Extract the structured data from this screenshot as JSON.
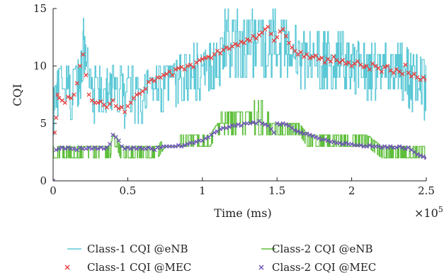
{
  "chart_data": {
    "type": "line",
    "title": "",
    "xlabel": "Time (ms)",
    "ylabel": "CQI",
    "x_multiplier_label": "×10",
    "x_multiplier_exponent": "5",
    "xlim": [
      0,
      2.5
    ],
    "ylim": [
      0,
      15
    ],
    "x_ticks": [
      0,
      0.5,
      1,
      1.5,
      2,
      2.5
    ],
    "x_tick_labels": [
      "0",
      "0.5",
      "1",
      "1.5",
      "2",
      "2.5"
    ],
    "y_ticks": [
      0,
      5,
      10,
      15
    ],
    "y_tick_labels": [
      "0",
      "5",
      "10",
      "15"
    ],
    "grid": false,
    "legend_position": "below",
    "series": [
      {
        "name": "Class-1 CQI @eNB",
        "kind": "line",
        "color": "#5bc8d6",
        "envelope_x": [
          0,
          0.05,
          0.1,
          0.15,
          0.18,
          0.2,
          0.22,
          0.25,
          0.3,
          0.35,
          0.4,
          0.45,
          0.5,
          0.55,
          0.6,
          0.65,
          0.7,
          0.75,
          0.8,
          0.85,
          0.9,
          0.95,
          1.0,
          1.05,
          1.1,
          1.15,
          1.2,
          1.25,
          1.3,
          1.35,
          1.4,
          1.45,
          1.5,
          1.55,
          1.6,
          1.65,
          1.7,
          1.75,
          1.8,
          1.85,
          1.9,
          1.95,
          2.0,
          2.05,
          2.1,
          2.15,
          2.2,
          2.25,
          2.3,
          2.35,
          2.4,
          2.45,
          2.5
        ],
        "envelope_low": [
          4,
          5,
          5,
          6,
          7,
          8,
          9,
          5,
          5,
          5,
          4,
          4,
          5,
          5,
          5,
          6,
          6,
          6,
          6,
          7,
          7,
          7,
          7,
          8,
          8,
          9,
          9,
          9,
          9,
          9,
          9,
          9,
          9,
          9,
          9,
          8,
          8,
          8,
          8,
          8,
          8,
          8,
          8,
          7,
          7,
          7,
          7,
          7,
          7,
          7,
          6,
          6,
          5
        ],
        "envelope_high": [
          10,
          10,
          10,
          11,
          13,
          14,
          12,
          10,
          10,
          10,
          10,
          10,
          10,
          10,
          10,
          10,
          10,
          11,
          11,
          11,
          11,
          12,
          12,
          12,
          13,
          15,
          15,
          15,
          15,
          15,
          15,
          15,
          15,
          14,
          14,
          13,
          13,
          13,
          13,
          13,
          13,
          13,
          13,
          12,
          12,
          12,
          12,
          12,
          12,
          12,
          11,
          11,
          11
        ]
      },
      {
        "name": "Class-1 CQI @MEC",
        "kind": "marker-x",
        "color": "#e83a3a",
        "x": [
          0,
          0.01,
          0.02,
          0.03,
          0.04,
          0.06,
          0.08,
          0.1,
          0.12,
          0.14,
          0.16,
          0.18,
          0.2,
          0.22,
          0.24,
          0.26,
          0.28,
          0.3,
          0.32,
          0.34,
          0.36,
          0.38,
          0.4,
          0.42,
          0.44,
          0.46,
          0.48,
          0.5,
          0.52,
          0.54,
          0.56,
          0.58,
          0.6,
          0.62,
          0.64,
          0.66,
          0.68,
          0.7,
          0.72,
          0.74,
          0.76,
          0.78,
          0.8,
          0.82,
          0.84,
          0.86,
          0.88,
          0.9,
          0.92,
          0.94,
          0.96,
          0.98,
          1.0,
          1.02,
          1.04,
          1.06,
          1.08,
          1.1,
          1.12,
          1.14,
          1.16,
          1.18,
          1.2,
          1.22,
          1.24,
          1.26,
          1.28,
          1.3,
          1.32,
          1.34,
          1.36,
          1.38,
          1.4,
          1.42,
          1.44,
          1.46,
          1.48,
          1.5,
          1.52,
          1.54,
          1.56,
          1.58,
          1.6,
          1.62,
          1.64,
          1.66,
          1.68,
          1.7,
          1.72,
          1.74,
          1.76,
          1.78,
          1.8,
          1.82,
          1.84,
          1.86,
          1.88,
          1.9,
          1.92,
          1.94,
          1.96,
          1.98,
          2.0,
          2.02,
          2.04,
          2.06,
          2.08,
          2.1,
          2.12,
          2.14,
          2.16,
          2.18,
          2.2,
          2.22,
          2.24,
          2.26,
          2.28,
          2.3,
          2.32,
          2.34,
          2.36,
          2.38,
          2.4,
          2.42,
          2.44,
          2.46,
          2.48,
          2.5
        ],
        "y": [
          0,
          4.2,
          5.5,
          7.5,
          7.2,
          7.0,
          6.8,
          7.3,
          7.2,
          7.5,
          8.5,
          10.0,
          11.0,
          9.2,
          7.5,
          7.0,
          6.8,
          6.8,
          6.9,
          6.6,
          6.4,
          6.7,
          7.0,
          6.5,
          6.3,
          6.4,
          6.0,
          6.5,
          6.8,
          7.2,
          7.5,
          7.6,
          7.8,
          8.0,
          8.6,
          8.8,
          8.7,
          9.0,
          9.0,
          9.2,
          9.3,
          9.5,
          9.2,
          9.7,
          9.8,
          9.9,
          9.7,
          10.0,
          10.1,
          9.9,
          10.3,
          10.5,
          10.6,
          10.7,
          10.8,
          10.7,
          11.0,
          11.3,
          11.1,
          11.4,
          11.6,
          11.5,
          11.7,
          11.9,
          11.8,
          12.1,
          12.0,
          12.3,
          12.2,
          12.6,
          12.4,
          12.7,
          12.9,
          13.2,
          13.4,
          12.8,
          12.2,
          12.5,
          13.0,
          13.2,
          12.6,
          12.0,
          11.6,
          11.3,
          11.0,
          11.2,
          10.8,
          11.0,
          10.7,
          10.8,
          10.9,
          10.6,
          10.7,
          10.3,
          10.6,
          10.4,
          10.8,
          10.5,
          10.3,
          10.5,
          10.2,
          10.3,
          10.0,
          10.2,
          10.4,
          10.1,
          9.9,
          10.0,
          9.7,
          10.2,
          10.0,
          9.8,
          9.5,
          9.9,
          10.0,
          9.6,
          9.4,
          9.7,
          9.5,
          9.3,
          10.1,
          9.4,
          9.1,
          9.3,
          9.0,
          8.8,
          9.0,
          8.8
        ]
      },
      {
        "name": "Class-2 CQI @eNB",
        "kind": "line",
        "color": "#5fbf3c",
        "envelope_x": [
          0,
          0.1,
          0.2,
          0.3,
          0.38,
          0.4,
          0.42,
          0.45,
          0.5,
          0.6,
          0.7,
          0.75,
          0.8,
          0.9,
          1.0,
          1.05,
          1.1,
          1.15,
          1.2,
          1.25,
          1.3,
          1.35,
          1.4,
          1.45,
          1.5,
          1.55,
          1.6,
          1.65,
          1.7,
          1.75,
          1.8,
          1.9,
          2.0,
          2.1,
          2.2,
          2.3,
          2.4,
          2.45,
          2.5
        ],
        "envelope_low": [
          2,
          2,
          2,
          2,
          2,
          3,
          3,
          2,
          2,
          2,
          2,
          3,
          3,
          3,
          3,
          3,
          4,
          4,
          4,
          4,
          4,
          4,
          4,
          4,
          4,
          4,
          4,
          4,
          3,
          3,
          3,
          3,
          3,
          3,
          2,
          2,
          2,
          2,
          2
        ],
        "envelope_high": [
          3,
          3,
          3,
          3,
          3,
          4,
          4,
          3,
          3,
          3,
          3,
          3,
          3,
          4,
          4,
          4,
          6,
          6,
          6,
          6,
          6,
          7,
          7,
          6,
          5,
          5,
          5,
          5,
          4,
          4,
          4,
          4,
          4,
          4,
          3,
          3,
          3,
          3,
          3
        ]
      },
      {
        "name": "Class-2 CQI @MEC",
        "kind": "marker-x",
        "color": "#6a4fb5",
        "x": [
          0,
          0.02,
          0.04,
          0.06,
          0.08,
          0.1,
          0.12,
          0.14,
          0.16,
          0.18,
          0.2,
          0.22,
          0.24,
          0.26,
          0.28,
          0.3,
          0.32,
          0.34,
          0.36,
          0.38,
          0.4,
          0.42,
          0.44,
          0.46,
          0.48,
          0.5,
          0.52,
          0.54,
          0.56,
          0.58,
          0.6,
          0.62,
          0.64,
          0.66,
          0.68,
          0.7,
          0.72,
          0.74,
          0.76,
          0.78,
          0.8,
          0.82,
          0.84,
          0.86,
          0.88,
          0.9,
          0.92,
          0.94,
          0.96,
          0.98,
          1.0,
          1.02,
          1.04,
          1.06,
          1.08,
          1.1,
          1.12,
          1.14,
          1.16,
          1.18,
          1.2,
          1.22,
          1.24,
          1.26,
          1.28,
          1.3,
          1.32,
          1.34,
          1.36,
          1.38,
          1.4,
          1.42,
          1.44,
          1.46,
          1.48,
          1.5,
          1.52,
          1.54,
          1.56,
          1.58,
          1.6,
          1.62,
          1.64,
          1.66,
          1.68,
          1.7,
          1.72,
          1.74,
          1.76,
          1.78,
          1.8,
          1.82,
          1.84,
          1.86,
          1.88,
          1.9,
          1.92,
          1.94,
          1.96,
          1.98,
          2.0,
          2.02,
          2.04,
          2.06,
          2.08,
          2.1,
          2.12,
          2.14,
          2.16,
          2.18,
          2.2,
          2.22,
          2.24,
          2.26,
          2.28,
          2.3,
          2.32,
          2.34,
          2.36,
          2.38,
          2.4,
          2.42,
          2.44,
          2.46,
          2.48,
          2.5
        ],
        "y": [
          0,
          2.7,
          2.8,
          2.9,
          2.8,
          2.9,
          2.8,
          2.8,
          2.7,
          2.9,
          2.8,
          2.8,
          2.9,
          2.8,
          2.9,
          2.8,
          2.9,
          2.8,
          2.9,
          3.2,
          4.0,
          3.8,
          3.5,
          3.0,
          2.8,
          2.9,
          2.8,
          2.9,
          2.8,
          2.9,
          2.8,
          2.8,
          2.9,
          2.8,
          2.7,
          2.9,
          2.9,
          3.0,
          3.0,
          3.0,
          3.0,
          3.0,
          3.1,
          3.0,
          3.1,
          3.2,
          3.3,
          3.3,
          3.4,
          3.5,
          3.5,
          3.7,
          3.8,
          4.0,
          4.2,
          4.3,
          4.5,
          4.6,
          4.6,
          4.7,
          4.8,
          4.8,
          4.9,
          4.8,
          5.0,
          5.0,
          5.0,
          5.1,
          5.0,
          5.2,
          5.0,
          4.9,
          4.8,
          4.5,
          4.2,
          5.0,
          4.9,
          5.0,
          4.9,
          4.8,
          4.6,
          4.4,
          4.3,
          4.2,
          4.1,
          4.1,
          4.0,
          3.9,
          3.8,
          3.7,
          3.6,
          3.6,
          3.5,
          3.4,
          3.4,
          3.3,
          3.3,
          3.2,
          3.3,
          3.2,
          3.2,
          3.1,
          3.1,
          3.1,
          3.0,
          3.0,
          3.1,
          3.0,
          3.0,
          3.0,
          2.9,
          3.0,
          2.9,
          3.0,
          2.9,
          2.9,
          3.0,
          2.9,
          2.8,
          2.9,
          2.7,
          2.5,
          2.3,
          2.2,
          2.1,
          2.0
        ]
      }
    ]
  }
}
